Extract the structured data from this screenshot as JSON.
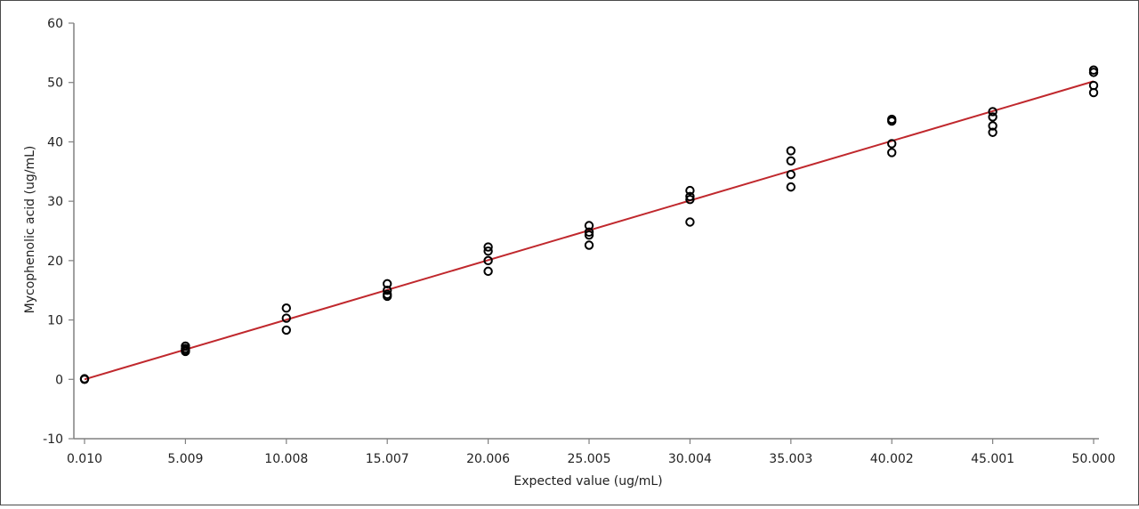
{
  "chart_data": {
    "type": "scatter",
    "title": "",
    "xlabel": "Expected value (ug/mL)",
    "ylabel": "Mycophenolic acid (ug/mL)",
    "xlim": [
      0.01,
      50.0
    ],
    "ylim": [
      -10,
      60
    ],
    "x_ticks": [
      "0.010",
      "5.009",
      "10.008",
      "15.007",
      "20.006",
      "25.005",
      "30.004",
      "35.003",
      "40.002",
      "45.001",
      "50.000"
    ],
    "y_ticks": [
      "-10",
      "0",
      "10",
      "20",
      "30",
      "40",
      "50",
      "60"
    ],
    "grid": false,
    "legend": "none",
    "series": [
      {
        "type": "scatter",
        "marker": "open-circle",
        "color": "#000000",
        "points": [
          [
            0.01,
            0.0
          ],
          [
            0.01,
            0.1
          ],
          [
            5.009,
            5.6
          ],
          [
            5.009,
            5.2
          ],
          [
            5.009,
            4.9
          ],
          [
            5.009,
            4.7
          ],
          [
            10.008,
            12.0
          ],
          [
            10.008,
            10.3
          ],
          [
            10.008,
            8.3
          ],
          [
            15.007,
            16.1
          ],
          [
            15.007,
            15.0
          ],
          [
            15.007,
            14.3
          ],
          [
            15.007,
            14.0
          ],
          [
            20.006,
            22.3
          ],
          [
            20.006,
            21.6
          ],
          [
            20.006,
            20.0
          ],
          [
            20.006,
            18.2
          ],
          [
            25.005,
            25.9
          ],
          [
            25.005,
            24.8
          ],
          [
            25.005,
            24.3
          ],
          [
            25.005,
            22.6
          ],
          [
            30.004,
            31.8
          ],
          [
            30.004,
            30.8
          ],
          [
            30.004,
            30.3
          ],
          [
            30.004,
            26.5
          ],
          [
            35.003,
            38.5
          ],
          [
            35.003,
            36.8
          ],
          [
            35.003,
            34.5
          ],
          [
            35.003,
            32.4
          ],
          [
            40.002,
            43.8
          ],
          [
            40.002,
            43.5
          ],
          [
            40.002,
            39.7
          ],
          [
            40.002,
            38.2
          ],
          [
            45.001,
            45.1
          ],
          [
            45.001,
            44.2
          ],
          [
            45.001,
            42.7
          ],
          [
            45.001,
            41.6
          ],
          [
            50.0,
            52.1
          ],
          [
            50.0,
            51.7
          ],
          [
            50.0,
            49.5
          ],
          [
            50.0,
            48.3
          ]
        ]
      },
      {
        "type": "line",
        "color": "#c0282d",
        "points": [
          [
            0.01,
            0.0
          ],
          [
            50.0,
            50.2
          ]
        ]
      }
    ]
  }
}
